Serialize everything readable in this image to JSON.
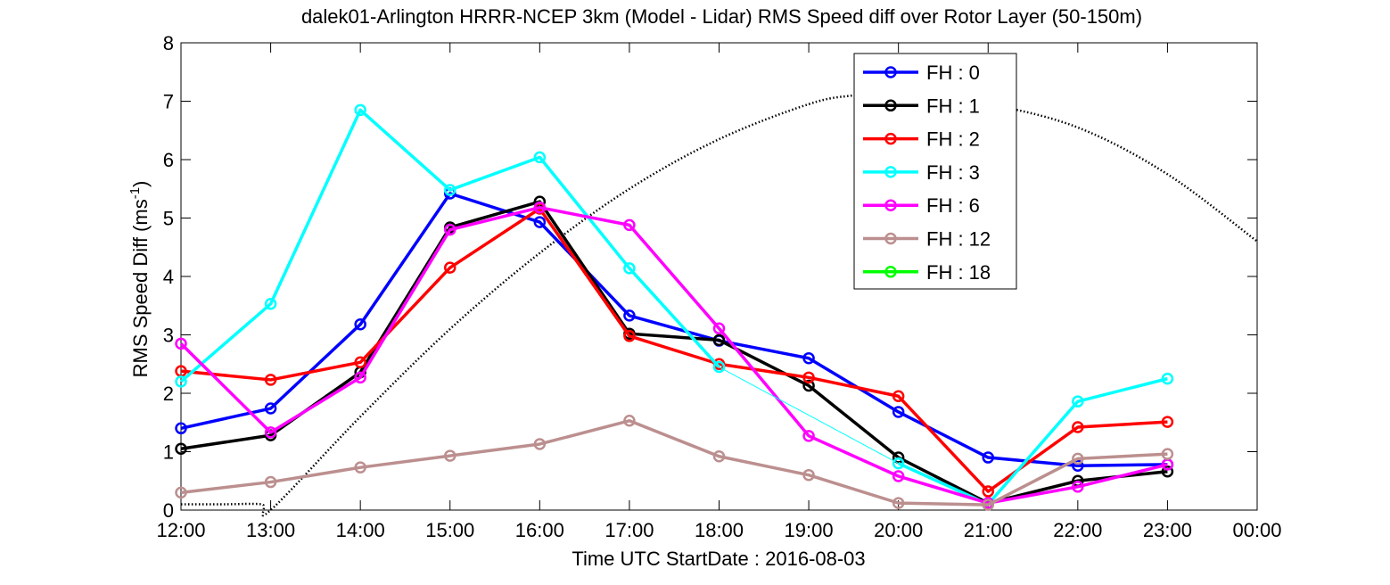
{
  "chart_data": {
    "type": "line",
    "title": "dalek01-Arlington HRRR-NCEP 3km (Model - Lidar) RMS Speed diff over Rotor Layer (50-150m)",
    "xlabel": "Time UTC    StartDate : 2016-08-03",
    "ylabel_main": "RMS Speed Diff (ms",
    "ylabel_sup": "-1",
    "ylabel_end": ")",
    "ylim": [
      0,
      8
    ],
    "yticks": [
      "0",
      "1",
      "2",
      "3",
      "4",
      "5",
      "6",
      "7",
      "8"
    ],
    "x_tick_labels": [
      "12:00",
      "13:00",
      "14:00",
      "15:00",
      "16:00",
      "17:00",
      "18:00",
      "19:00",
      "20:00",
      "21:00",
      "22:00",
      "23:00",
      "00:00"
    ],
    "grid": false,
    "legend_position": "top-right",
    "series": [
      {
        "name": "FH : 0",
        "color": "#0000ff",
        "values": [
          1.4,
          1.74,
          3.18,
          5.42,
          4.93,
          3.33,
          2.9,
          2.6,
          1.68,
          0.9,
          0.76,
          0.78
        ]
      },
      {
        "name": "FH : 1",
        "color": "#000000",
        "values": [
          1.05,
          1.28,
          2.36,
          4.84,
          5.28,
          3.02,
          2.91,
          2.13,
          0.9,
          0.12,
          0.5,
          0.66
        ]
      },
      {
        "name": "FH : 2",
        "color": "#ff0000",
        "values": [
          2.38,
          2.23,
          2.53,
          4.15,
          5.16,
          2.98,
          2.5,
          2.27,
          1.95,
          0.32,
          1.42,
          1.51
        ]
      },
      {
        "name": "FH : 3",
        "color": "#00ffff",
        "values": [
          2.2,
          3.53,
          6.85,
          5.48,
          6.04,
          4.14,
          2.45,
          null,
          0.8,
          0.1,
          1.86,
          2.25
        ]
      },
      {
        "name": "FH : 6",
        "color": "#ff00ff",
        "values": [
          2.85,
          1.33,
          2.27,
          4.8,
          5.18,
          4.88,
          3.11,
          1.27,
          0.58,
          0.12,
          0.4,
          0.78
        ]
      },
      {
        "name": "FH : 12",
        "color": "#bc8f8f",
        "values": [
          0.3,
          0.48,
          0.73,
          0.93,
          1.13,
          1.53,
          0.92,
          0.6,
          0.12,
          0.09,
          0.88,
          0.96
        ]
      },
      {
        "name": "FH : 18",
        "color": "#00ff00",
        "values": []
      }
    ],
    "gap_segment": {
      "series": "FH : 3",
      "from_hour": 18,
      "to_hour": 20,
      "style": "thin"
    },
    "sun_elevation_curve": {
      "style": "dotted",
      "color": "#000000",
      "x_hours": [
        12.0,
        12.5,
        12.9,
        13.0,
        14.0,
        15.0,
        16.0,
        17.0,
        18.0,
        19.0,
        19.5,
        20.0,
        21.0,
        22.0,
        23.0,
        24.0
      ],
      "y": [
        0.1,
        0.1,
        0.1,
        0.0,
        1.6,
        3.1,
        4.4,
        5.5,
        6.35,
        6.95,
        7.1,
        7.15,
        6.95,
        6.55,
        5.75,
        4.6
      ]
    }
  }
}
